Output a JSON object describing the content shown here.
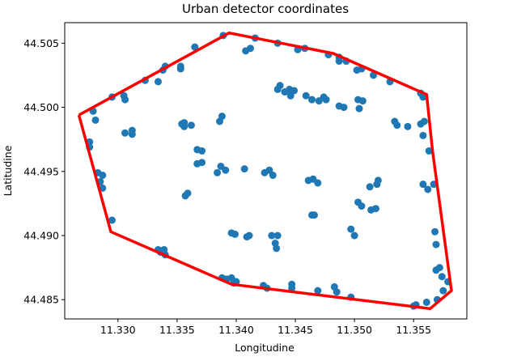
{
  "chart_data": {
    "type": "scatter",
    "title": "Urban detector coordinates",
    "xlabel": "Longitudine",
    "ylabel": "Latitudine",
    "xlim": [
      11.3255,
      11.3595
    ],
    "ylim": [
      44.4835,
      44.5066
    ],
    "x_ticks": [
      11.33,
      11.335,
      11.34,
      11.345,
      11.35,
      11.355
    ],
    "y_ticks": [
      44.485,
      44.49,
      44.495,
      44.5,
      44.505
    ],
    "x_tick_labels": [
      "11.330",
      "11.335",
      "11.340",
      "11.345",
      "11.350",
      "11.355"
    ],
    "y_tick_labels": [
      "44.485",
      "44.490",
      "44.495",
      "44.500",
      "44.505"
    ],
    "grid": false,
    "colors": {
      "points": "#1f77b4",
      "hull": "#ff0000"
    },
    "points": [
      [
        11.3279,
        44.4997
      ],
      [
        11.3281,
        44.499
      ],
      [
        11.3276,
        44.4973
      ],
      [
        11.3276,
        44.4969
      ],
      [
        11.3283,
        44.4949
      ],
      [
        11.3287,
        44.4947
      ],
      [
        11.3285,
        44.4942
      ],
      [
        11.3287,
        44.4937
      ],
      [
        11.3295,
        44.4912
      ],
      [
        11.3295,
        44.5008
      ],
      [
        11.3305,
        44.5009
      ],
      [
        11.3306,
        44.5006
      ],
      [
        11.3306,
        44.498
      ],
      [
        11.3312,
        44.4979
      ],
      [
        11.3312,
        44.4982
      ],
      [
        11.3323,
        44.5021
      ],
      [
        11.3334,
        44.502
      ],
      [
        11.3338,
        44.5029
      ],
      [
        11.334,
        44.5032
      ],
      [
        11.3353,
        44.503
      ],
      [
        11.3353,
        44.5032
      ],
      [
        11.3365,
        44.5047
      ],
      [
        11.3389,
        44.5056
      ],
      [
        11.3408,
        44.5044
      ],
      [
        11.3412,
        44.5046
      ],
      [
        11.3416,
        44.5054
      ],
      [
        11.3435,
        44.505
      ],
      [
        11.3452,
        44.5045
      ],
      [
        11.3458,
        44.5046
      ],
      [
        11.3478,
        44.5041
      ],
      [
        11.3487,
        44.5039
      ],
      [
        11.3487,
        44.5036
      ],
      [
        11.3493,
        44.5036
      ],
      [
        11.3502,
        44.5029
      ],
      [
        11.3506,
        44.503
      ],
      [
        11.3516,
        44.5025
      ],
      [
        11.353,
        44.502
      ],
      [
        11.3556,
        44.5011
      ],
      [
        11.3558,
        44.5008
      ],
      [
        11.3354,
        44.4987
      ],
      [
        11.3356,
        44.4985
      ],
      [
        11.3356,
        44.4988
      ],
      [
        11.3362,
        44.4986
      ],
      [
        11.3367,
        44.4967
      ],
      [
        11.3371,
        44.4966
      ],
      [
        11.3367,
        44.4956
      ],
      [
        11.3371,
        44.4957
      ],
      [
        11.3357,
        44.4931
      ],
      [
        11.3359,
        44.4933
      ],
      [
        11.3386,
        44.4989
      ],
      [
        11.3388,
        44.4993
      ],
      [
        11.3387,
        44.4954
      ],
      [
        11.3391,
        44.4951
      ],
      [
        11.3384,
        44.4949
      ],
      [
        11.3407,
        44.4952
      ],
      [
        11.3424,
        44.4949
      ],
      [
        11.3428,
        44.4951
      ],
      [
        11.3431,
        44.4947
      ],
      [
        11.3435,
        44.5014
      ],
      [
        11.3437,
        44.5017
      ],
      [
        11.3441,
        44.5012
      ],
      [
        11.3445,
        44.5014
      ],
      [
        11.3446,
        44.5009
      ],
      [
        11.3449,
        44.5013
      ],
      [
        11.3459,
        44.5009
      ],
      [
        11.3464,
        44.5006
      ],
      [
        11.347,
        44.5005
      ],
      [
        11.3474,
        44.5008
      ],
      [
        11.3476,
        44.5006
      ],
      [
        11.3461,
        44.4943
      ],
      [
        11.3465,
        44.4944
      ],
      [
        11.3469,
        44.4941
      ],
      [
        11.3464,
        44.4916
      ],
      [
        11.3466,
        44.4916
      ],
      [
        11.3487,
        44.5001
      ],
      [
        11.3491,
        44.5
      ],
      [
        11.3503,
        44.5006
      ],
      [
        11.3507,
        44.5005
      ],
      [
        11.3504,
        44.4999
      ],
      [
        11.3513,
        44.4938
      ],
      [
        11.352,
        44.4943
      ],
      [
        11.3519,
        44.494
      ],
      [
        11.3503,
        44.4926
      ],
      [
        11.3506,
        44.4923
      ],
      [
        11.3514,
        44.492
      ],
      [
        11.3518,
        44.4921
      ],
      [
        11.3497,
        44.4905
      ],
      [
        11.35,
        44.49
      ],
      [
        11.3534,
        44.4989
      ],
      [
        11.3536,
        44.4986
      ],
      [
        11.3545,
        44.4985
      ],
      [
        11.3556,
        44.4987
      ],
      [
        11.3559,
        44.4989
      ],
      [
        11.3558,
        44.4978
      ],
      [
        11.3563,
        44.4966
      ],
      [
        11.3558,
        44.494
      ],
      [
        11.3562,
        44.4936
      ],
      [
        11.3567,
        44.494
      ],
      [
        11.3568,
        44.4903
      ],
      [
        11.3569,
        44.4893
      ],
      [
        11.3569,
        44.4873
      ],
      [
        11.3572,
        44.4875
      ],
      [
        11.3574,
        44.4868
      ],
      [
        11.3579,
        44.4864
      ],
      [
        11.3575,
        44.4857
      ],
      [
        11.357,
        44.485
      ],
      [
        11.3561,
        44.4848
      ],
      [
        11.3552,
        44.4846
      ],
      [
        11.355,
        44.4845
      ],
      [
        11.3497,
        44.4852
      ],
      [
        11.3485,
        44.4856
      ],
      [
        11.3483,
        44.486
      ],
      [
        11.3469,
        44.4857
      ],
      [
        11.3447,
        44.4859
      ],
      [
        11.3447,
        44.4862
      ],
      [
        11.3423,
        44.4861
      ],
      [
        11.3426,
        44.4859
      ],
      [
        11.3398,
        44.4863
      ],
      [
        11.3396,
        44.4867
      ],
      [
        11.3392,
        44.4866
      ],
      [
        11.3388,
        44.4867
      ],
      [
        11.34,
        44.4864
      ],
      [
        11.343,
        44.49
      ],
      [
        11.3435,
        44.49
      ],
      [
        11.3433,
        44.4894
      ],
      [
        11.3434,
        44.489
      ],
      [
        11.3411,
        44.49
      ],
      [
        11.3409,
        44.4899
      ],
      [
        11.3399,
        44.4901
      ],
      [
        11.3396,
        44.4902
      ],
      [
        11.3334,
        44.4889
      ],
      [
        11.3339,
        44.4889
      ],
      [
        11.3336,
        44.4887
      ],
      [
        11.334,
        44.4885
      ]
    ],
    "hull": [
      [
        11.3267,
        44.4994
      ],
      [
        11.3394,
        44.5058
      ],
      [
        11.3482,
        44.5042
      ],
      [
        11.3561,
        44.501
      ],
      [
        11.3566,
        44.4966
      ],
      [
        11.3582,
        44.4857
      ],
      [
        11.3564,
        44.4843
      ],
      [
        11.3396,
        44.4862
      ],
      [
        11.3294,
        44.4903
      ],
      [
        11.3267,
        44.4994
      ]
    ]
  }
}
